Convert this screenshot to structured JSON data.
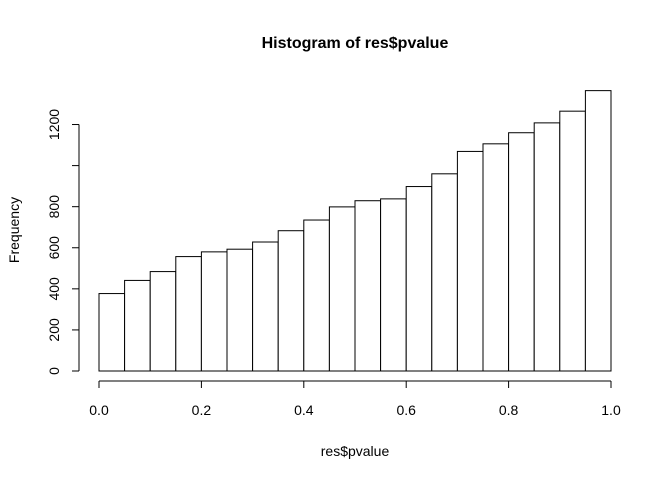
{
  "chart_data": {
    "type": "bar",
    "subtype": "histogram",
    "title": "Histogram of res$pvalue",
    "xlabel": "res$pvalue",
    "ylabel": "Frequency",
    "xlim": [
      0,
      1
    ],
    "ylim": [
      0,
      1350
    ],
    "x_ticks": [
      0.0,
      0.2,
      0.4,
      0.6,
      0.8,
      1.0
    ],
    "x_tick_labels": [
      "0.0",
      "0.2",
      "0.4",
      "0.6",
      "0.8",
      "1.0"
    ],
    "y_ticks": [
      0,
      200,
      400,
      600,
      800,
      1000,
      1200
    ],
    "y_tick_labels": [
      "0",
      "200",
      "400",
      "600",
      "800",
      "",
      "1200"
    ],
    "bin_edges": [
      0.0,
      0.05,
      0.1,
      0.15,
      0.2,
      0.25,
      0.3,
      0.35,
      0.4,
      0.45,
      0.5,
      0.55,
      0.6,
      0.65,
      0.7,
      0.75,
      0.8,
      0.85,
      0.9,
      0.95,
      1.0
    ],
    "values": [
      377,
      441,
      484,
      557,
      580,
      593,
      628,
      683,
      735,
      799,
      829,
      838,
      898,
      960,
      1069,
      1106,
      1160,
      1208,
      1265,
      1365
    ],
    "grid": false,
    "legend": "none",
    "colors": {
      "bar_fill": "#ffffff",
      "bar_stroke": "#000000"
    }
  }
}
